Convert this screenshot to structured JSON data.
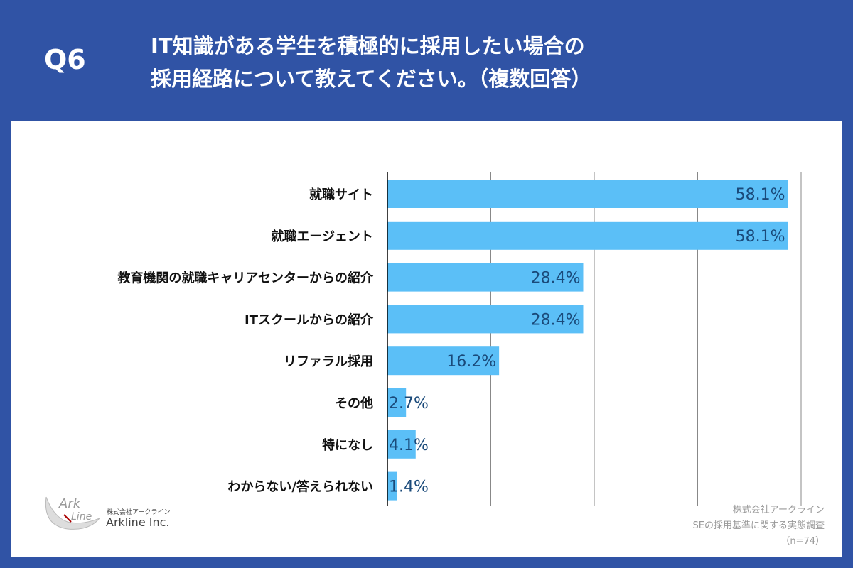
{
  "header": {
    "q": "Q6",
    "title_line1": "IT知識がある学生を積極的に採用したい場合の",
    "title_line2": "採用経路について教えてください。（複数回答）"
  },
  "chart_data": {
    "type": "bar",
    "orientation": "horizontal",
    "categories": [
      "就職サイト",
      "就職エージェント",
      "教育機関の就職キャリアセンターからの紹介",
      "ITスクールからの紹介",
      "リファラル採用",
      "その他",
      "特になし",
      "わからない/答えられない"
    ],
    "values": [
      58.1,
      58.1,
      28.4,
      28.4,
      16.2,
      2.7,
      4.1,
      1.4
    ],
    "labels": [
      "58.1%",
      "58.1%",
      "28.4%",
      "28.4%",
      "16.2%",
      "2.7%",
      "4.1%",
      "1.4%"
    ],
    "unit": "%",
    "xlim": [
      0,
      60
    ],
    "grid": true,
    "bar_color": "#5bbff7",
    "label_color": "#1a4a7a"
  },
  "logo": {
    "jp": "株式会社アークライン",
    "en": "Arkline Inc."
  },
  "credit": {
    "line1": "株式会社アークライン",
    "line2": "SEの採用基準に関する実態調査",
    "line3": "（n=74）"
  }
}
